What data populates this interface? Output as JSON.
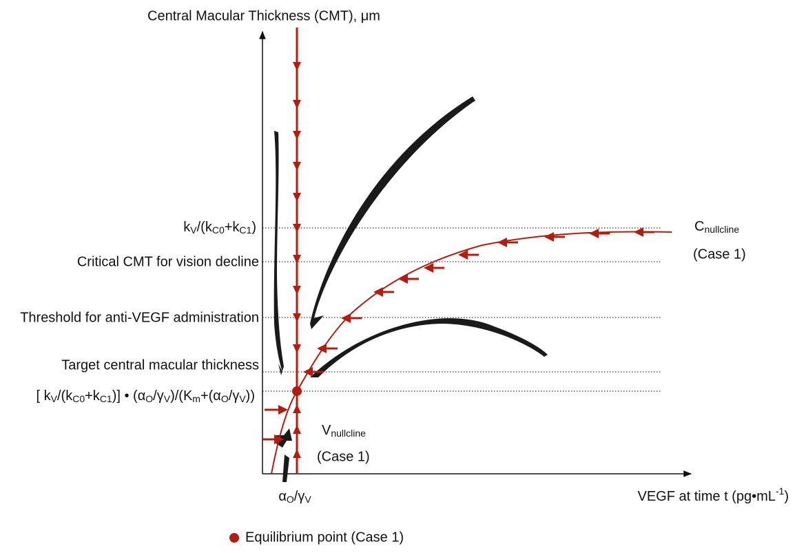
{
  "y_axis_title": "Central Macular Thickness (CMT), μm",
  "x_axis_title": [
    "VEGF at time t (pg•mL",
    "-1",
    ")"
  ],
  "x_marker": [
    "α",
    "O",
    "/γ",
    "V"
  ],
  "levels": {
    "k_ratio": [
      "k",
      "V",
      "/(k",
      "C0",
      "+k",
      "C1",
      ")"
    ],
    "critical": "Critical CMT for vision decline",
    "threshold": "Threshold for anti-VEGF administration",
    "target": "Target central macular thickness",
    "equilibrium": [
      "[ k",
      "V",
      "/(k",
      "C0",
      "+k",
      "C1",
      ")] • (α",
      "O",
      "/γ",
      "V",
      ")/(K",
      "m",
      "+(α",
      "O",
      "/γ",
      "V",
      "))"
    ]
  },
  "c_nullcline": [
    "C",
    "nullcline",
    "(Case 1)"
  ],
  "v_nullcline": [
    "V",
    "nullcline",
    "(Case 1)"
  ],
  "legend": "Equilibrium point  (Case 1)"
}
